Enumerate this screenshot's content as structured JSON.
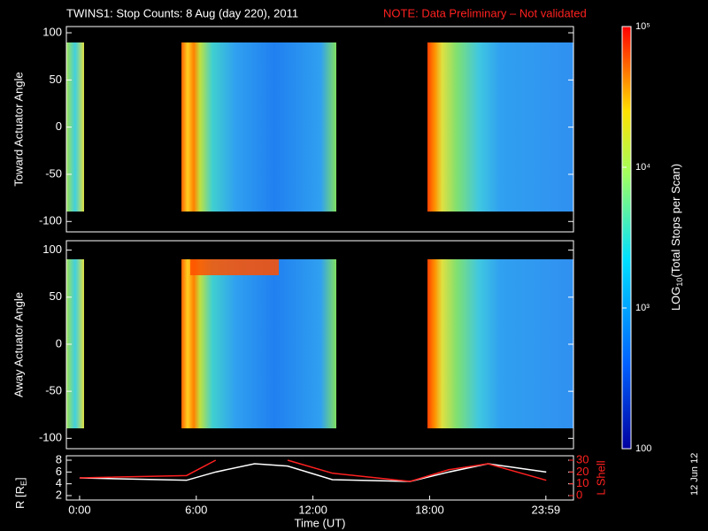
{
  "title": "TWINS1: Stop Counts:  8 Aug (day 220), 2011",
  "note": "NOTE: Data Preliminary – Not validated",
  "date_stamp": "12 Jun 12",
  "colorbar": {
    "label_prefix": "LOG",
    "label_sub": "10",
    "label_suffix": "(Total Stops per Scan)",
    "log": true,
    "clim": [
      100,
      100000
    ],
    "ticks": [
      100,
      {
        "value": 1000,
        "label": "10³"
      },
      {
        "value": 10000,
        "label": "10⁴"
      },
      {
        "value": 100000,
        "label": "10⁵"
      }
    ]
  },
  "chart_data": [
    {
      "type": "spectrogram",
      "ylabel": "Toward Actuator Angle",
      "xlim": [
        -0.68,
        25.4
      ],
      "ylim": [
        -111,
        106.6
      ],
      "yticks": [
        -100,
        -50,
        0,
        50,
        100
      ]
    },
    {
      "type": "spectrogram",
      "ylabel": "Away Actuator Angle",
      "xlim": [
        -0.68,
        25.4
      ],
      "ylim": [
        -111,
        110
      ],
      "yticks": [
        -100,
        -50,
        0,
        50,
        100
      ]
    },
    {
      "type": "line",
      "xlabel": "Time (UT)",
      "ylabel_prefix": "R [R",
      "ylabel_sub": "E",
      "ylabel_suffix": "]",
      "y2label": "L Shell",
      "xlim": [
        -0.68,
        25.4
      ],
      "xticks": [
        {
          "value": 0,
          "label": "0:00"
        },
        {
          "value": 6,
          "label": "6:00"
        },
        {
          "value": 12,
          "label": "12:00"
        },
        {
          "value": 18,
          "label": "18:00"
        },
        {
          "value": 23.98,
          "label": "23:59"
        }
      ],
      "ylim": [
        1.25,
        8.75
      ],
      "yticks": [
        2,
        4,
        6,
        8
      ],
      "y2lim": [
        -3.75,
        33.75
      ],
      "y2ticks": [
        0,
        10,
        20,
        30
      ],
      "x": [
        0,
        5.5,
        7,
        9,
        10.7,
        13,
        17,
        19,
        21,
        24
      ],
      "series": [
        {
          "name": "R",
          "color": "#ffffff",
          "values": [
            5.0,
            4.6,
            6.0,
            7.4,
            7.0,
            4.7,
            4.4,
            6.0,
            7.4,
            6.0
          ]
        },
        {
          "name": "L Shell",
          "color": "#ff2020",
          "axis": "y2",
          "values": [
            15,
            17,
            30,
            null,
            30,
            19,
            12,
            22,
            27,
            13
          ]
        }
      ]
    }
  ]
}
